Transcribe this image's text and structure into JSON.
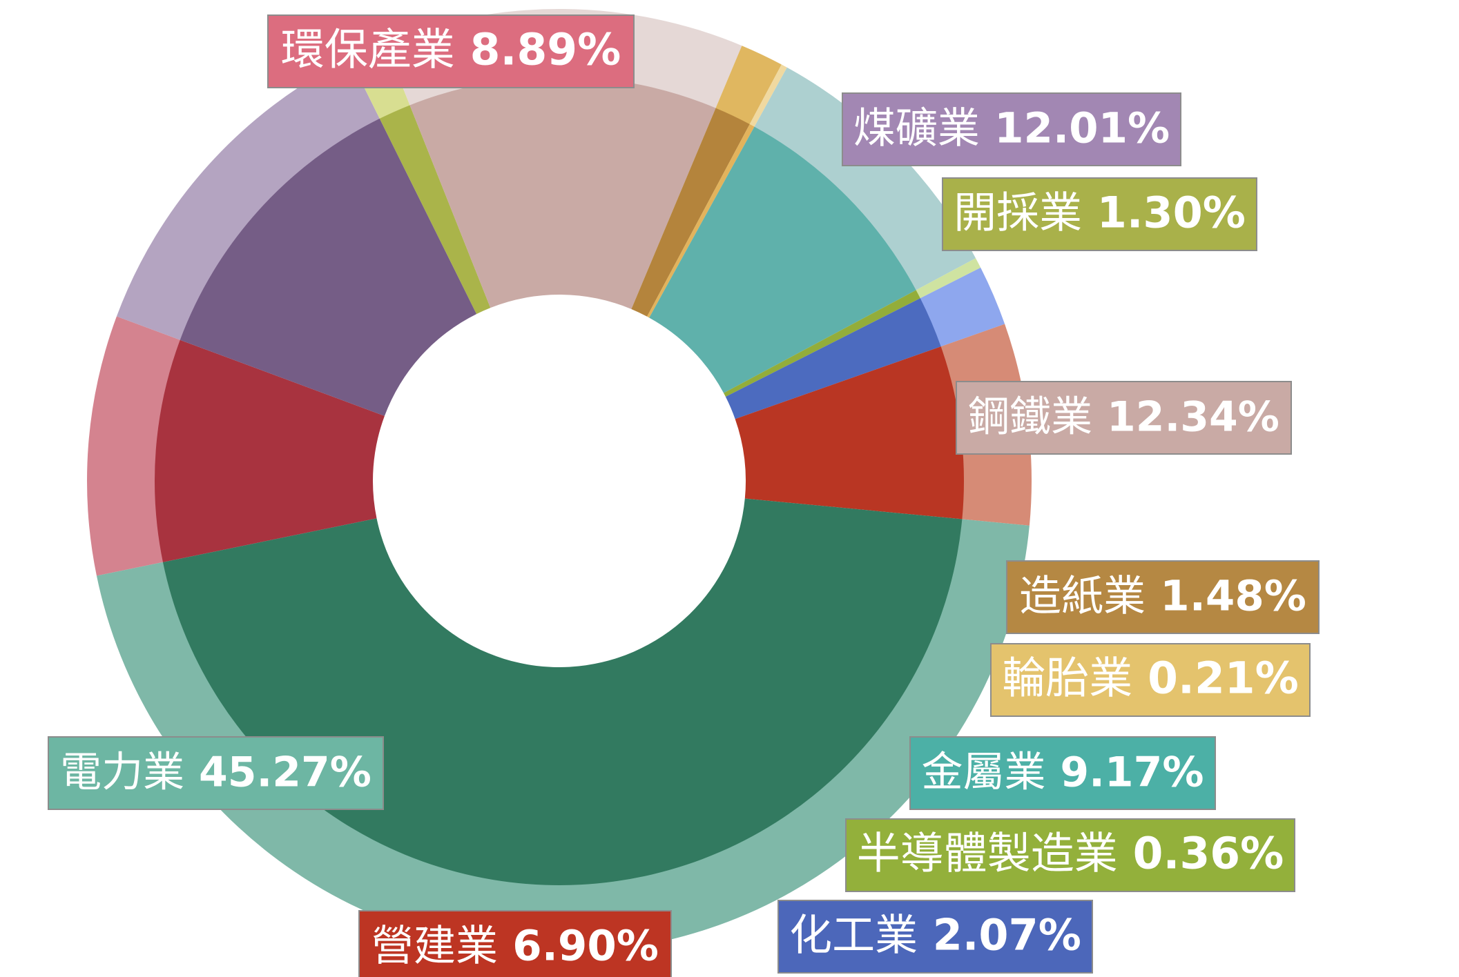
{
  "chart_data": {
    "type": "pie",
    "title": "",
    "donut": true,
    "unit": "%",
    "slices": [
      {
        "label": "環保產業",
        "value": 8.89,
        "value_label": "8.89%",
        "color": "#a8333f",
        "outer_color": "#d4838f",
        "label_color": "#dc6d7f"
      },
      {
        "label": "煤礦業",
        "value": 12.01,
        "value_label": "12.01%",
        "color": "#755d86",
        "outer_color": "#b4a4c1",
        "label_color": "#a287b3"
      },
      {
        "label": "開採業",
        "value": 1.3,
        "value_label": "1.30%",
        "color": "#aab44a",
        "outer_color": "#d8de91",
        "label_color": "#a9b14a"
      },
      {
        "label": "鋼鐵業",
        "value": 12.34,
        "value_label": "12.34%",
        "color": "#c9aaa5",
        "outer_color": "#e5d8d6",
        "label_color": "#c9aaa5"
      },
      {
        "label": "造紙業",
        "value": 1.48,
        "value_label": "1.48%",
        "color": "#b4843c",
        "outer_color": "#e0b760",
        "label_color": "#b58843"
      },
      {
        "label": "輪胎業",
        "value": 0.21,
        "value_label": "0.21%",
        "color": "#e2b35c",
        "outer_color": "#f0d9a0",
        "label_color": "#e4c36d"
      },
      {
        "label": "金屬業",
        "value": 9.17,
        "value_label": "9.17%",
        "color": "#5fb1ab",
        "outer_color": "#add0d0",
        "label_color": "#4cb0a6"
      },
      {
        "label": "半導體製造業",
        "value": 0.36,
        "value_label": "0.36%",
        "color": "#93ad3a",
        "outer_color": "#cfe3a1",
        "label_color": "#93b03b"
      },
      {
        "label": "化工業",
        "value": 2.07,
        "value_label": "2.07%",
        "color": "#4c6bbf",
        "outer_color": "#8ea7ee",
        "label_color": "#4c67ba"
      },
      {
        "label": "營建業",
        "value": 6.9,
        "value_label": "6.90%",
        "color": "#b93623",
        "outer_color": "#d68b76",
        "label_color": "#bd3523"
      },
      {
        "label": "電力業",
        "value": 45.27,
        "value_label": "45.27%",
        "color": "#327a60",
        "outer_color": "#7fb8a8",
        "label_color": "#6db6a3"
      }
    ]
  }
}
